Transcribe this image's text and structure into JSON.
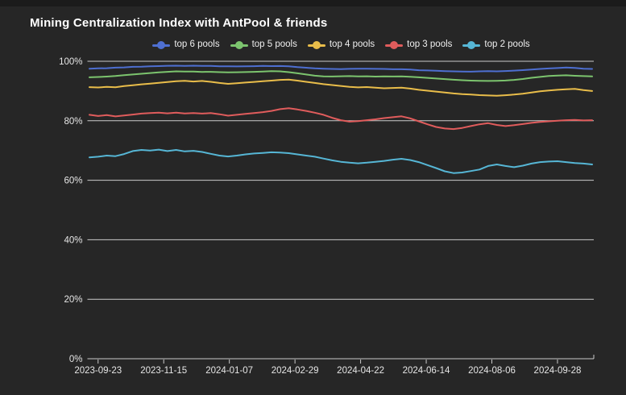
{
  "theme": {
    "background": "#262626",
    "top_strip_color": "#1b1b1b",
    "grid_color": "#e8e8e8",
    "axis_text_color": "#e6e6e6",
    "title_color": "#ffffff",
    "legend_text_color": "#efefef"
  },
  "chart_data": {
    "type": "line",
    "title": "Mining Centralization Index with AntPool & friends",
    "xlabel": "",
    "ylabel": "",
    "ylim": [
      0,
      100
    ],
    "grid": true,
    "legend_position": "top",
    "start_date": "2023-09-16",
    "interval_days": 7,
    "x_ticks": [
      "2023-09-23",
      "2023-11-15",
      "2024-01-07",
      "2024-02-29",
      "2024-04-22",
      "2024-06-14",
      "2024-08-06",
      "2024-09-28"
    ],
    "y_ticks": [
      {
        "label": "0%",
        "value": 0
      },
      {
        "label": "20%",
        "value": 20
      },
      {
        "label": "40%",
        "value": 40
      },
      {
        "label": "60%",
        "value": 60
      },
      {
        "label": "80%",
        "value": 80
      },
      {
        "label": "100%",
        "value": 100
      }
    ],
    "series": [
      {
        "name": "top 6 pools",
        "color": "#4e6fd1",
        "values": [
          97.5,
          97.62,
          97.68,
          97.85,
          97.95,
          98.12,
          98.18,
          98.32,
          98.38,
          98.47,
          98.5,
          98.46,
          98.52,
          98.44,
          98.42,
          98.33,
          98.3,
          98.27,
          98.33,
          98.36,
          98.42,
          98.38,
          98.41,
          98.3,
          98.02,
          97.82,
          97.62,
          97.5,
          97.42,
          97.38,
          97.44,
          97.47,
          97.52,
          97.44,
          97.42,
          97.33,
          97.31,
          97.22,
          97.0,
          96.92,
          96.82,
          96.7,
          96.62,
          96.54,
          96.5,
          96.62,
          96.7,
          96.6,
          96.72,
          96.86,
          97.02,
          97.22,
          97.42,
          97.6,
          97.72,
          97.9,
          97.78,
          97.52,
          97.42
        ]
      },
      {
        "name": "top 5 pools",
        "color": "#7cc46e",
        "values": [
          94.6,
          94.72,
          94.85,
          95.05,
          95.3,
          95.55,
          95.8,
          96.05,
          96.25,
          96.45,
          96.6,
          96.52,
          96.55,
          96.42,
          96.45,
          96.33,
          96.3,
          96.32,
          96.38,
          96.45,
          96.55,
          96.68,
          96.6,
          96.35,
          95.95,
          95.55,
          95.15,
          94.92,
          94.88,
          94.95,
          95.02,
          94.9,
          94.95,
          94.85,
          94.92,
          94.88,
          94.9,
          94.78,
          94.6,
          94.42,
          94.2,
          94.0,
          93.8,
          93.62,
          93.5,
          93.42,
          93.38,
          93.45,
          93.52,
          93.75,
          94.05,
          94.45,
          94.75,
          95.05,
          95.2,
          95.28,
          95.12,
          95.0,
          94.9
        ]
      },
      {
        "name": "top 4 pools",
        "color": "#e9bd4a",
        "values": [
          91.3,
          91.18,
          91.38,
          91.28,
          91.65,
          91.95,
          92.25,
          92.5,
          92.75,
          93.0,
          93.3,
          93.45,
          93.2,
          93.4,
          93.1,
          92.7,
          92.42,
          92.6,
          92.85,
          93.05,
          93.3,
          93.5,
          93.75,
          93.85,
          93.5,
          93.1,
          92.7,
          92.3,
          92.0,
          91.7,
          91.42,
          91.22,
          91.32,
          91.12,
          90.92,
          91.02,
          91.1,
          90.8,
          90.42,
          90.1,
          89.8,
          89.5,
          89.2,
          88.95,
          88.8,
          88.62,
          88.5,
          88.42,
          88.58,
          88.8,
          89.1,
          89.5,
          89.9,
          90.2,
          90.42,
          90.6,
          90.7,
          90.3,
          90.0
        ]
      },
      {
        "name": "top 3 pools",
        "color": "#e05c5c",
        "values": [
          82.0,
          81.6,
          81.9,
          81.45,
          81.8,
          82.1,
          82.4,
          82.6,
          82.7,
          82.5,
          82.7,
          82.45,
          82.6,
          82.4,
          82.6,
          82.2,
          81.7,
          82.0,
          82.3,
          82.6,
          82.9,
          83.3,
          83.9,
          84.2,
          83.8,
          83.3,
          82.7,
          82.0,
          81.0,
          80.2,
          79.7,
          79.9,
          80.2,
          80.5,
          80.9,
          81.2,
          81.5,
          80.8,
          79.8,
          78.8,
          77.9,
          77.4,
          77.2,
          77.6,
          78.2,
          78.8,
          79.2,
          78.6,
          78.2,
          78.5,
          78.9,
          79.3,
          79.6,
          79.8,
          80.0,
          80.2,
          80.3,
          80.1,
          80.2
        ]
      },
      {
        "name": "top 2 pools",
        "color": "#56b6d5",
        "values": [
          67.7,
          67.9,
          68.3,
          68.1,
          68.8,
          69.8,
          70.2,
          70.0,
          70.3,
          69.8,
          70.2,
          69.7,
          69.9,
          69.5,
          68.9,
          68.3,
          68.0,
          68.3,
          68.7,
          69.0,
          69.2,
          69.4,
          69.3,
          69.1,
          68.7,
          68.3,
          67.9,
          67.3,
          66.7,
          66.2,
          65.9,
          65.7,
          65.9,
          66.2,
          66.5,
          66.9,
          67.2,
          66.8,
          66.1,
          65.1,
          64.1,
          63.0,
          62.4,
          62.6,
          63.1,
          63.6,
          64.8,
          65.3,
          64.8,
          64.4,
          64.9,
          65.6,
          66.1,
          66.3,
          66.4,
          66.1,
          65.8,
          65.6,
          65.3
        ]
      }
    ]
  }
}
